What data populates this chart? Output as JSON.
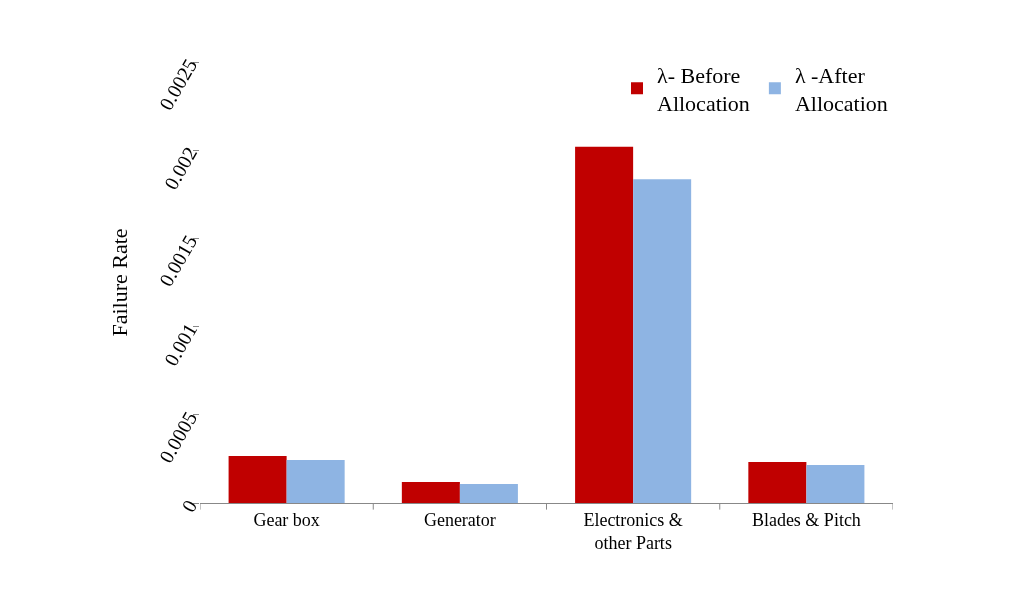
{
  "chart_data": {
    "type": "bar",
    "ylabel": "Failure Rate",
    "categories": [
      "Gear box",
      "Generator",
      "Electronics &\nother Parts",
      "Blades & Pitch"
    ],
    "series": [
      {
        "name": "λ- Before\nAllocation",
        "color": "#c00000",
        "values": [
          0.000267,
          0.000119,
          0.00202,
          0.000233
        ]
      },
      {
        "name": "λ -After\nAllocation",
        "color": "#8eb4e3",
        "values": [
          0.000244,
          0.000108,
          0.001835,
          0.000216
        ]
      }
    ],
    "ylim": [
      0,
      0.0025
    ],
    "yticks": [
      0,
      0.0005,
      0.001,
      0.0015,
      0.002,
      0.0025
    ],
    "legend": "top right"
  }
}
